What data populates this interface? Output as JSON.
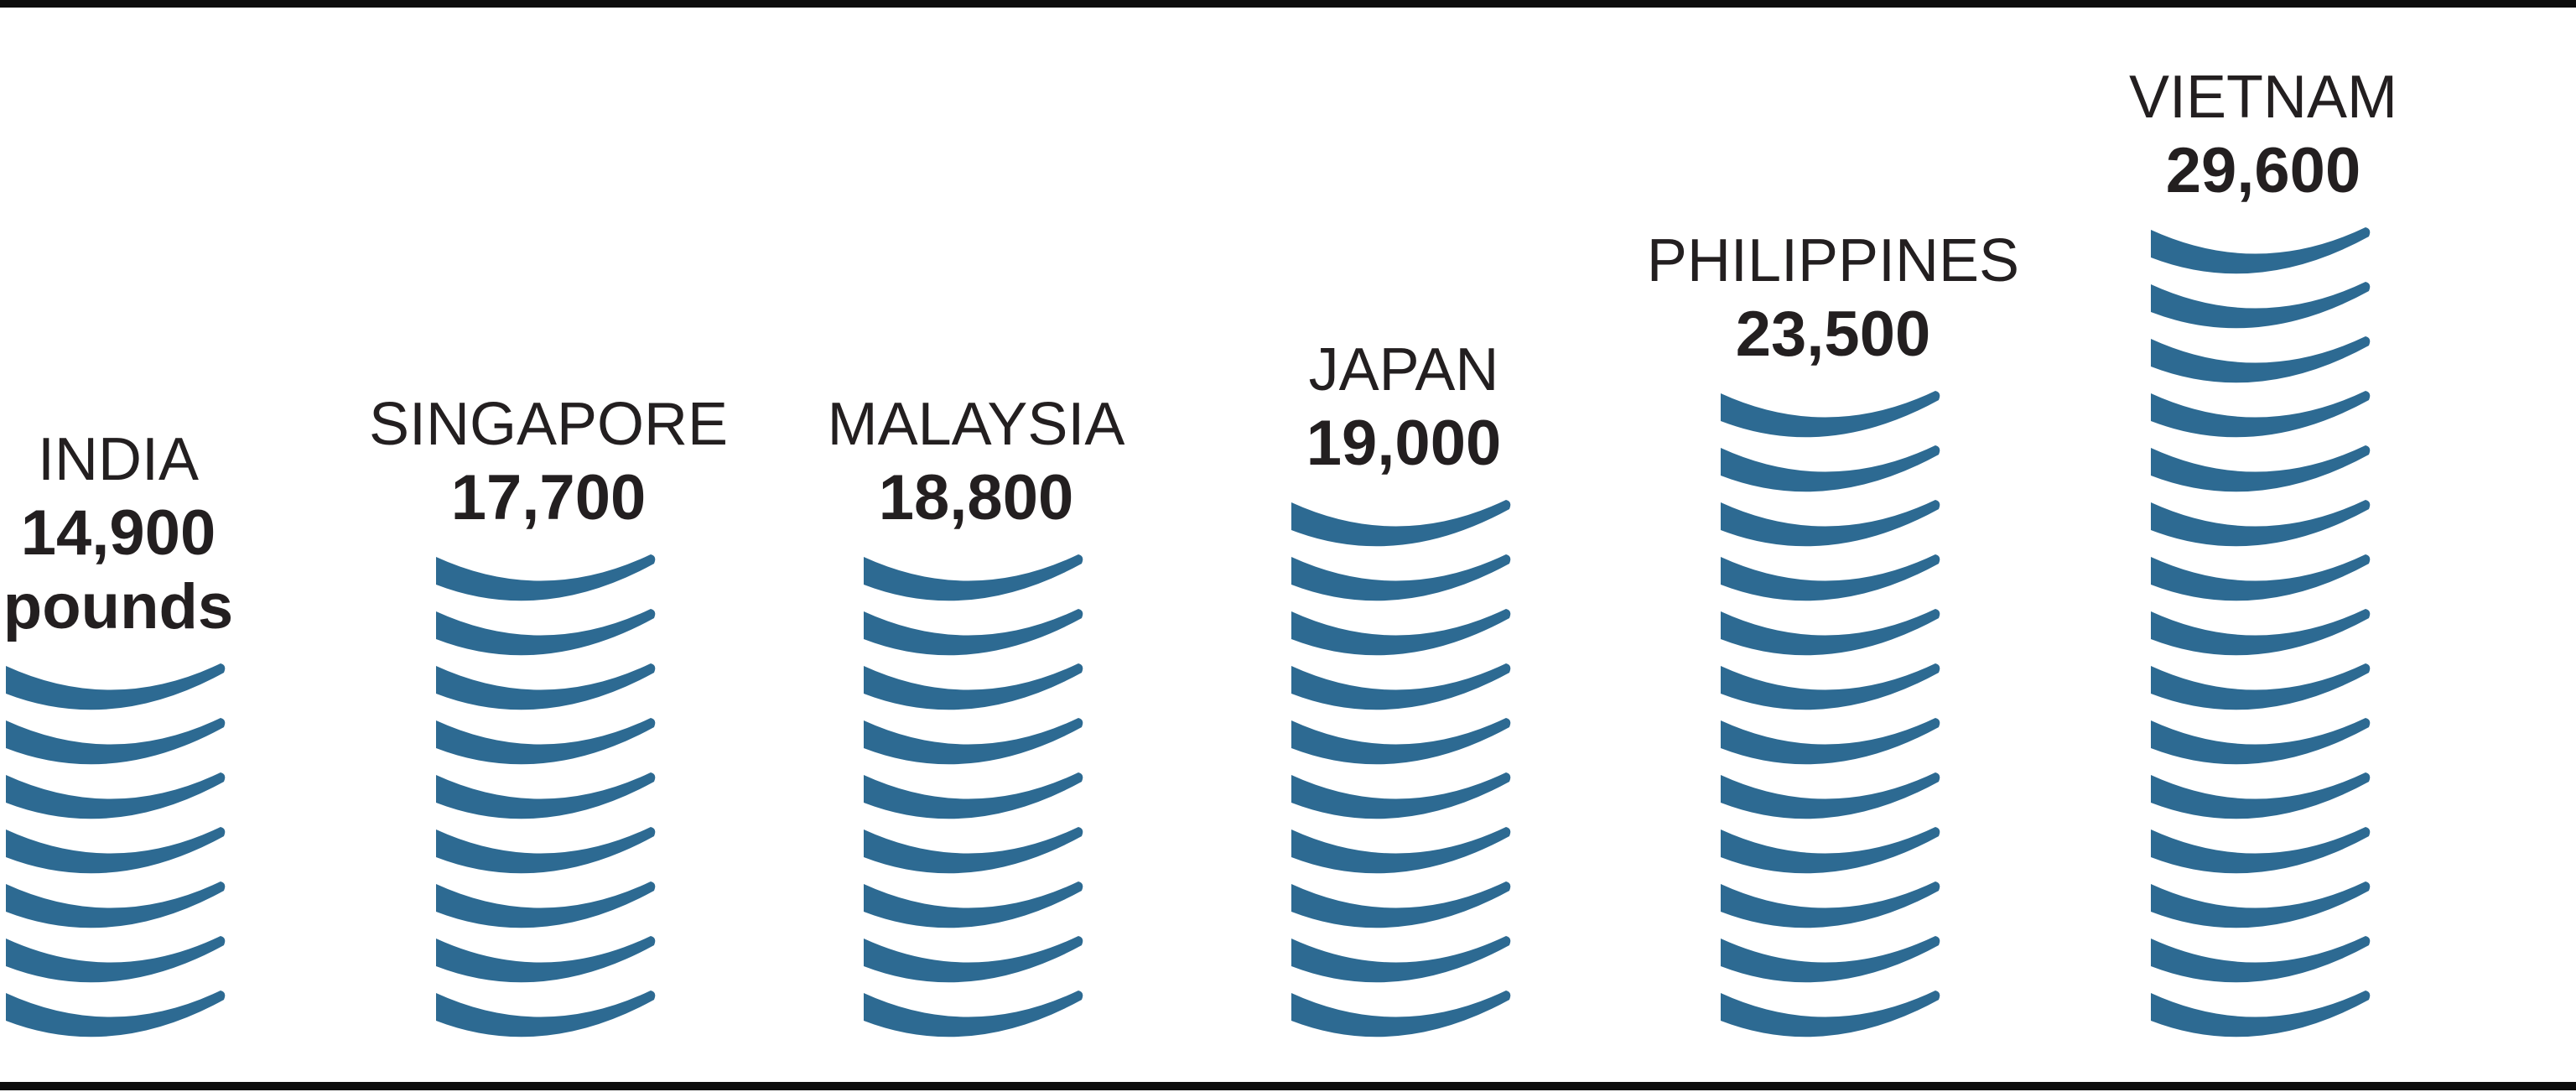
{
  "chart": {
    "bar_color": "#2d6a92",
    "text_color": "#231f20",
    "countries": [
      {
        "name": "INDIA",
        "value": "14,900",
        "unit": "pounds",
        "stripes": 7
      },
      {
        "name": "SINGAPORE",
        "value": "17,700",
        "stripes": 9
      },
      {
        "name": "MALAYSIA",
        "value": "18,800",
        "stripes": 9
      },
      {
        "name": "JAPAN",
        "value": "19,000",
        "stripes": 10
      },
      {
        "name": "PHILIPPINES",
        "value": "23,500",
        "stripes": 12
      },
      {
        "name": "VIETNAM",
        "value": "29,600",
        "stripes": 15
      }
    ]
  },
  "chart_data": {
    "type": "bar",
    "categories": [
      "INDIA",
      "SINGAPORE",
      "MALAYSIA",
      "JAPAN",
      "PHILIPPINES",
      "VIETNAM"
    ],
    "values": [
      14900,
      17700,
      18800,
      19000,
      23500,
      29600
    ],
    "value_labels": [
      "14,900 pounds",
      "17,700",
      "18,800",
      "19,000",
      "23,500",
      "29,600"
    ],
    "unit": "pounds",
    "title": "",
    "xlabel": "",
    "ylabel": "",
    "legend": false,
    "grid": false,
    "style": "isotype pictogram bar chart; each bar is a stack of curved blue disc stripes, one stripe per ~2000 pounds, bottom-aligned",
    "stripe_counts": [
      7,
      9,
      9,
      10,
      12,
      15
    ],
    "bar_color": "#2d6a92"
  }
}
